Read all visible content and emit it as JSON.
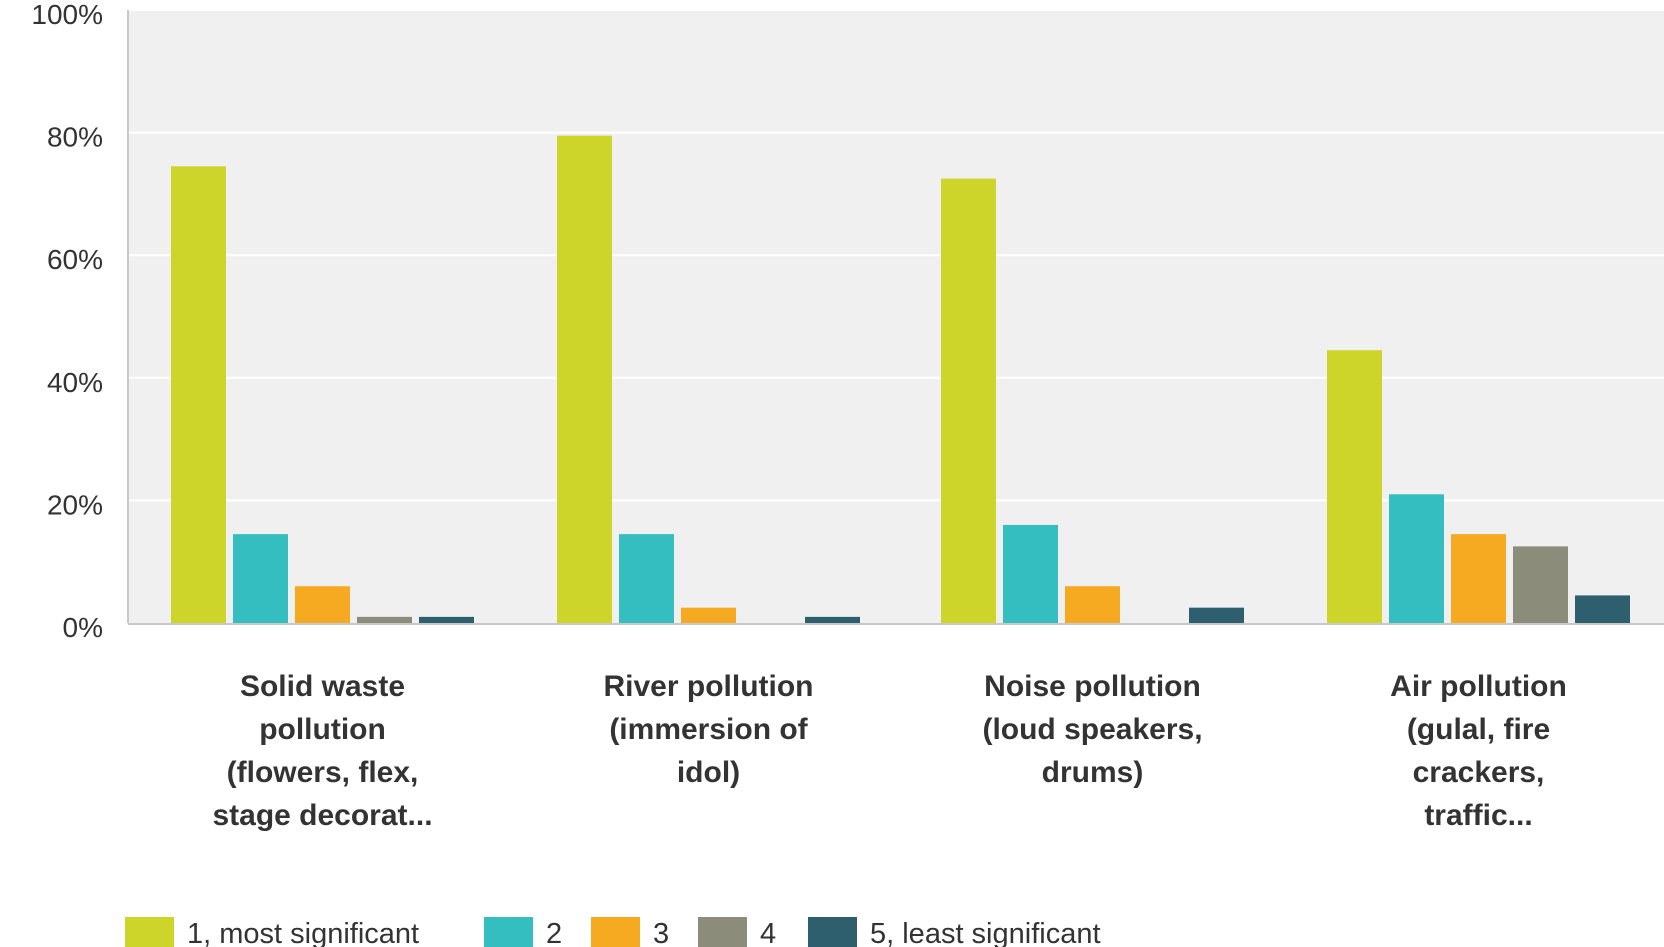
{
  "chart_data": {
    "type": "bar",
    "title": "",
    "xlabel": "",
    "ylabel": "",
    "ylim": [
      0,
      100
    ],
    "y_ticks": [
      0,
      20,
      40,
      60,
      80,
      100
    ],
    "y_tick_labels": [
      "0%",
      "20%",
      "40%",
      "60%",
      "80%",
      "100%"
    ],
    "grid": true,
    "legend_position": "bottom-left",
    "categories": [
      {
        "lines": [
          "Solid waste",
          "pollution",
          "(flowers, flex,",
          "stage decorat..."
        ]
      },
      {
        "lines": [
          "River pollution",
          "(immersion of",
          "idol)"
        ]
      },
      {
        "lines": [
          "Noise pollution",
          "(loud speakers,",
          "drums)"
        ]
      },
      {
        "lines": [
          "Air pollution",
          "(gulal, fire",
          "crackers,",
          "traffic..."
        ]
      }
    ],
    "series": [
      {
        "name": "1, most significant",
        "color": "#cdd52a",
        "values": [
          74.5,
          79.5,
          72.5,
          44.5
        ]
      },
      {
        "name": "2",
        "color": "#34bec0",
        "values": [
          14.5,
          14.5,
          16,
          21
        ]
      },
      {
        "name": "3",
        "color": "#f5aa22",
        "values": [
          6,
          2.5,
          6,
          14.5
        ]
      },
      {
        "name": "4",
        "color": "#8c8c7a",
        "values": [
          1,
          0,
          0,
          12.5
        ]
      },
      {
        "name": "5, least significant",
        "color": "#2e5f6e",
        "values": [
          1,
          1,
          2.5,
          4.5
        ]
      }
    ],
    "colors": {
      "plot_background": "#f0f0f0",
      "grid": "#ffffff",
      "axis": "#c8c8c8",
      "text": "#333333"
    }
  }
}
